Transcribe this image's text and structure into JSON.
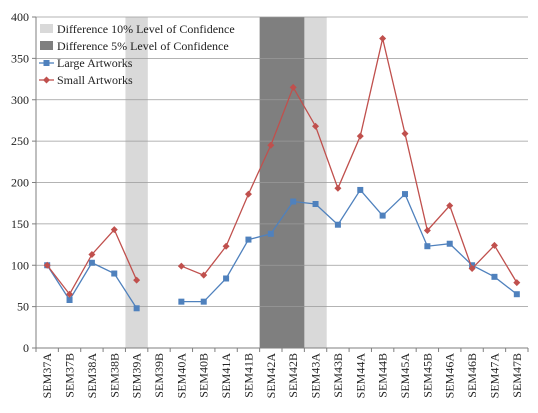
{
  "chart_data": {
    "type": "line",
    "categories": [
      "SEM37A",
      "SEM37B",
      "SEM38A",
      "SEM38B",
      "SEM39A",
      "SEM39B",
      "SEM40A",
      "SEM40B",
      "SEM41A",
      "SEM41B",
      "SEM42A",
      "SEM42B",
      "SEM43A",
      "SEM43B",
      "SEM44A",
      "SEM44B",
      "SEM45A",
      "SEM45B",
      "SEM46A",
      "SEM46B",
      "SEM47A",
      "SEM47B"
    ],
    "series": [
      {
        "name": "Large Artworks",
        "color": "#4f81bd",
        "marker": "square",
        "values": [
          100,
          58,
          103,
          90,
          48,
          null,
          56,
          56,
          84,
          131,
          138,
          177,
          174,
          149,
          191,
          160,
          186,
          123,
          126,
          100,
          86,
          65
        ]
      },
      {
        "name": "Small Artworks",
        "color": "#c0504d",
        "marker": "diamond",
        "values": [
          100,
          65,
          113,
          143,
          82,
          null,
          99,
          88,
          123,
          186,
          245,
          315,
          268,
          193,
          256,
          374,
          259,
          142,
          172,
          96,
          124,
          79
        ]
      }
    ],
    "bands": [
      {
        "name": "Difference 10% Level of Confidence",
        "color": "#d9d9d9",
        "categories": [
          "SEM39A",
          "SEM43A"
        ]
      },
      {
        "name": "Difference 5% Level of Confidence",
        "color": "#7f7f7f",
        "categories": [
          "SEM42A",
          "SEM42B"
        ]
      }
    ],
    "title": "",
    "xlabel": "",
    "ylabel": "",
    "ylim": [
      0,
      400
    ],
    "yticks": [
      0,
      50,
      100,
      150,
      200,
      250,
      300,
      350,
      400
    ],
    "grid": true,
    "legend_position": "top-left"
  },
  "legend": {
    "items": [
      {
        "label": "Difference 10% Level of Confidence",
        "color": "#d9d9d9",
        "kind": "band"
      },
      {
        "label": "Difference 5% Level of Confidence",
        "color": "#7f7f7f",
        "kind": "band"
      },
      {
        "label": "Large Artworks",
        "color": "#4f81bd",
        "kind": "line-square"
      },
      {
        "label": "Small Artworks",
        "color": "#c0504d",
        "kind": "line-diamond"
      }
    ]
  }
}
